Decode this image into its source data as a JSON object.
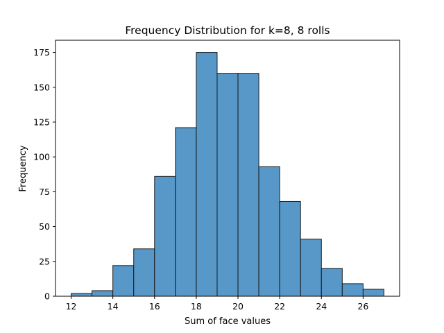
{
  "chart_data": {
    "type": "bar",
    "title": "Frequency Distribution for k=8, 8 rolls",
    "xlabel": "Sum of face values",
    "ylabel": "Frequency",
    "bins": [
      {
        "start": 12,
        "end": 13,
        "value": 2
      },
      {
        "start": 13,
        "end": 14,
        "value": 4
      },
      {
        "start": 14,
        "end": 15,
        "value": 22
      },
      {
        "start": 15,
        "end": 16,
        "value": 34
      },
      {
        "start": 16,
        "end": 17,
        "value": 86
      },
      {
        "start": 17,
        "end": 18,
        "value": 121
      },
      {
        "start": 18,
        "end": 19,
        "value": 175
      },
      {
        "start": 19,
        "end": 20,
        "value": 160
      },
      {
        "start": 20,
        "end": 21,
        "value": 160
      },
      {
        "start": 21,
        "end": 22,
        "value": 93
      },
      {
        "start": 22,
        "end": 23,
        "value": 68
      },
      {
        "start": 23,
        "end": 24,
        "value": 41
      },
      {
        "start": 24,
        "end": 25,
        "value": 20
      },
      {
        "start": 25,
        "end": 26,
        "value": 9
      },
      {
        "start": 26,
        "end": 27,
        "value": 5
      }
    ],
    "xlim": [
      11.25,
      27.75
    ],
    "ylim": [
      0,
      183.75
    ],
    "xticks": [
      12,
      14,
      16,
      18,
      20,
      22,
      24,
      26
    ],
    "yticks": [
      0,
      25,
      50,
      75,
      100,
      125,
      150,
      175
    ],
    "grid": false,
    "colors": {
      "bar_fill": "#3a86c0",
      "bar_edge": "#1a1a1a"
    }
  }
}
